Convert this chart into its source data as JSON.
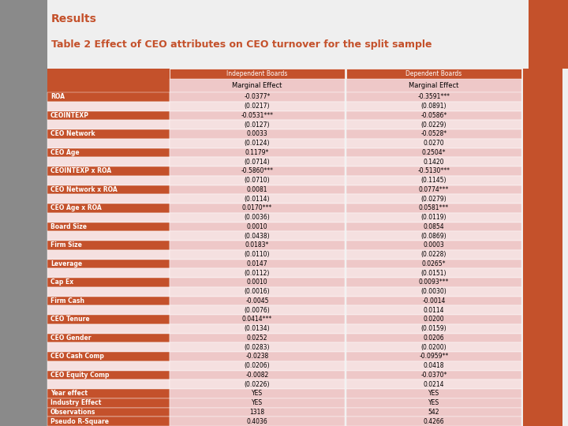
{
  "title_line1": "Results",
  "title_line2": "Table 2 Effect of CEO attributes on CEO turnover for the split sample",
  "hdr_row1_col1": "Independent Boards",
  "hdr_row1_col2": "Dependent Boards",
  "hdr_row2": "Marginal Effect",
  "rows": [
    {
      "label": "ROA",
      "col1": "-0.0377*",
      "col2": "-0.3591***",
      "is_label": true
    },
    {
      "label": "",
      "col1": "(0.0217)",
      "col2": "(0.0891)",
      "is_label": false
    },
    {
      "label": "CEOINTEXP",
      "col1": "-0.0531***",
      "col2": "-0.0586*",
      "is_label": true
    },
    {
      "label": "",
      "col1": "(0.0127)",
      "col2": "(0.0229)",
      "is_label": false
    },
    {
      "label": "CEO Network",
      "col1": "0.0033",
      "col2": "-0.0528*",
      "is_label": true
    },
    {
      "label": "",
      "col1": "(0.0124)",
      "col2": "0.0270",
      "is_label": false
    },
    {
      "label": "CEO Age",
      "col1": "0.1179*",
      "col2": "0.2504*",
      "is_label": true
    },
    {
      "label": "",
      "col1": "(0.0714)",
      "col2": "0.1420",
      "is_label": false
    },
    {
      "label": "CEOINTEXP x ROA",
      "col1": "-0.5860***",
      "col2": "-0.5130***",
      "is_label": true
    },
    {
      "label": "",
      "col1": "(0.0710)",
      "col2": "(0.1145)",
      "is_label": false
    },
    {
      "label": "CEO Network x ROA",
      "col1": "0.0081",
      "col2": "0.0774***",
      "is_label": true
    },
    {
      "label": "",
      "col1": "(0.0114)",
      "col2": "(0.0279)",
      "is_label": false
    },
    {
      "label": "CEO Age x ROA",
      "col1": "0.0170***",
      "col2": "0.0581***",
      "is_label": true
    },
    {
      "label": "",
      "col1": "(0.0036)",
      "col2": "(0.0119)",
      "is_label": false
    },
    {
      "label": "Board Size",
      "col1": "0.0010",
      "col2": "0.0854",
      "is_label": true
    },
    {
      "label": "",
      "col1": "(0.0438)",
      "col2": "(0.0869)",
      "is_label": false
    },
    {
      "label": "Firm Size",
      "col1": "0.0183*",
      "col2": "0.0003",
      "is_label": true
    },
    {
      "label": "",
      "col1": "(0.0110)",
      "col2": "(0.0228)",
      "is_label": false
    },
    {
      "label": "Leverage",
      "col1": "0.0147",
      "col2": "0.0265*",
      "is_label": true
    },
    {
      "label": "",
      "col1": "(0.0112)",
      "col2": "(0.0151)",
      "is_label": false
    },
    {
      "label": "Cap Ex",
      "col1": "0.0010",
      "col2": "0.0093***",
      "is_label": true
    },
    {
      "label": "",
      "col1": "(0.0016)",
      "col2": "(0.0030)",
      "is_label": false
    },
    {
      "label": "Firm Cash",
      "col1": "-0.0045",
      "col2": "-0.0014",
      "is_label": true
    },
    {
      "label": "",
      "col1": "(0.0076)",
      "col2": "0.0114",
      "is_label": false
    },
    {
      "label": "CEO Tenure",
      "col1": "0.0414***",
      "col2": "0.0200",
      "is_label": true
    },
    {
      "label": "",
      "col1": "(0.0134)",
      "col2": "(0.0159)",
      "is_label": false
    },
    {
      "label": "CEO Gender",
      "col1": "0.0252",
      "col2": "0.0206",
      "is_label": true
    },
    {
      "label": "",
      "col1": "(0.0283)",
      "col2": "(0.0200)",
      "is_label": false
    },
    {
      "label": "CEO Cash Comp",
      "col1": "-0.0238",
      "col2": "-0.0959**",
      "is_label": true
    },
    {
      "label": "",
      "col1": "(0.0206)",
      "col2": "0.0418",
      "is_label": false
    },
    {
      "label": "CEO Equity Comp",
      "col1": "-0.0082",
      "col2": "-0.0370*",
      "is_label": true
    },
    {
      "label": "",
      "col1": "(0.0226)",
      "col2": "0.0214",
      "is_label": false
    },
    {
      "label": "Year effect",
      "col1": "YES",
      "col2": "YES",
      "is_label": true
    },
    {
      "label": "Industry Effect",
      "col1": "YES",
      "col2": "YES",
      "is_label": true
    },
    {
      "label": "Observations",
      "col1": "1318",
      "col2": "542",
      "is_label": true
    },
    {
      "label": "Pseudo R-Square",
      "col1": "0.4036",
      "col2": "0.4266",
      "is_label": true
    }
  ],
  "orange": "#C4512B",
  "pink_dark": "#EEC8C8",
  "pink_light": "#F5E0E0",
  "gray_sidebar": "#8A8A8A",
  "title_color": "#C4512B",
  "white": "#FFFFFF",
  "bg": "#EFEFEF"
}
